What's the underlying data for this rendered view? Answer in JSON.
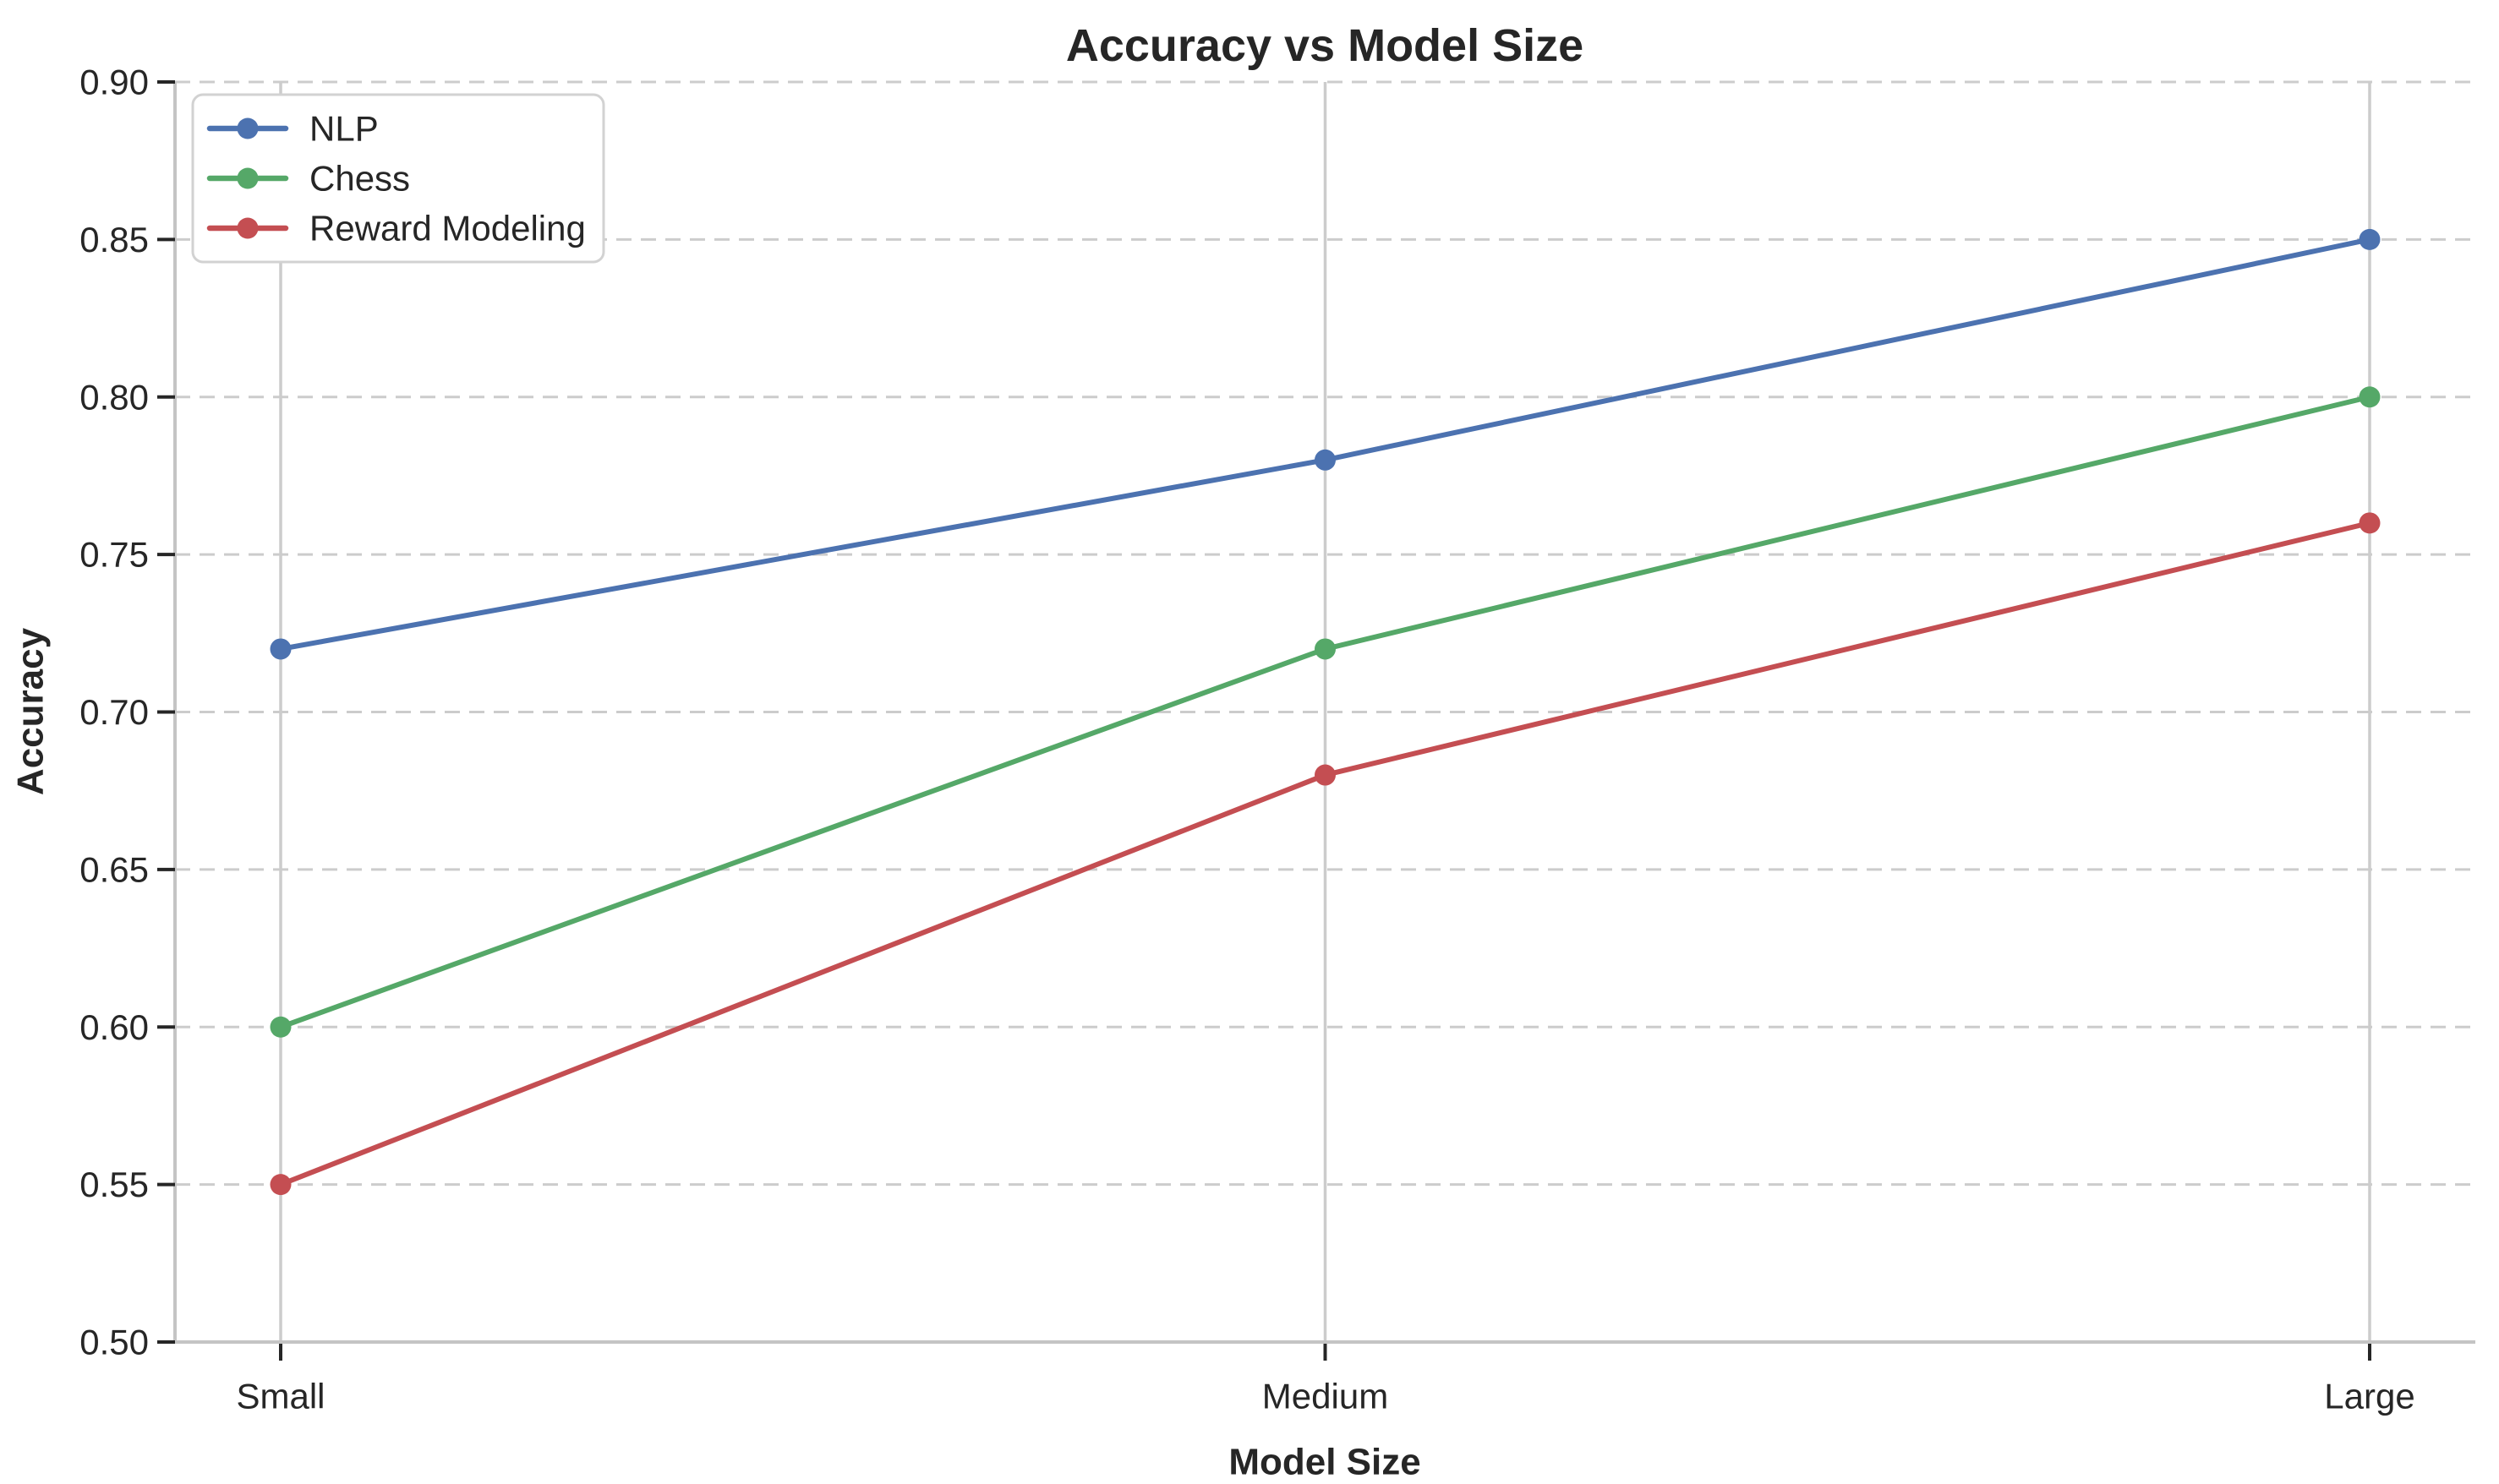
{
  "chart_data": {
    "type": "line",
    "title": "Accuracy vs Model Size",
    "xlabel": "Model Size",
    "ylabel": "Accuracy",
    "categories": [
      "Small",
      "Medium",
      "Large"
    ],
    "series": [
      {
        "name": "NLP",
        "values": [
          0.72,
          0.78,
          0.85
        ],
        "color": "#4C72B0"
      },
      {
        "name": "Chess",
        "values": [
          0.6,
          0.72,
          0.8
        ],
        "color": "#55A868"
      },
      {
        "name": "Reward Modeling",
        "values": [
          0.55,
          0.68,
          0.76
        ],
        "color": "#C44E52"
      }
    ],
    "ylim": [
      0.5,
      0.9
    ],
    "yticks": [
      0.5,
      0.55,
      0.6,
      0.65,
      0.7,
      0.75,
      0.8,
      0.85,
      0.9
    ],
    "ytick_labels": [
      "0.50",
      "0.55",
      "0.60",
      "0.65",
      "0.70",
      "0.75",
      "0.80",
      "0.85",
      "0.90"
    ],
    "marker": "circle",
    "legend_position": "upper left",
    "grid": "horizontal dashed lines at y ticks, solid vertical lines at categories",
    "colors": {
      "text": "#262626",
      "grid": "#cccccc",
      "spine": "#c4c4c4",
      "background": "#ffffff",
      "legend_border": "#d2d2d2"
    }
  }
}
